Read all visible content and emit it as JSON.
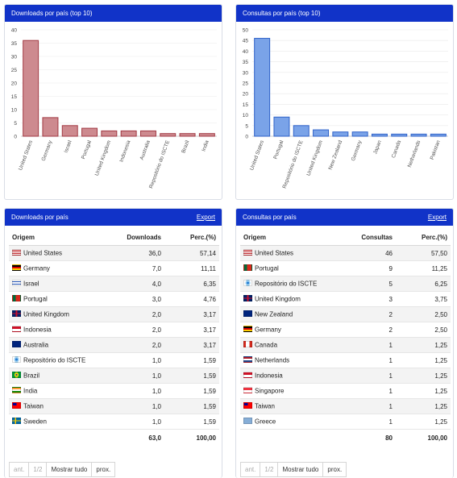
{
  "downloads_chart": {
    "title": "Downloads por país (top 10)",
    "chart_data": {
      "type": "bar",
      "categories": [
        "United States",
        "Germany",
        "Israel",
        "Portugal",
        "United Kingdom",
        "Indonesia",
        "Australia",
        "Repositório do ISCTE",
        "Brazil",
        "India"
      ],
      "values": [
        36,
        7,
        4,
        3,
        2,
        2,
        2,
        1,
        1,
        1
      ],
      "ylim": [
        0,
        40
      ],
      "yticks": [
        0,
        5,
        10,
        15,
        20,
        25,
        30,
        35,
        40
      ],
      "grid": true,
      "color": "#cd8a8f",
      "stroke": "#a23a44"
    }
  },
  "consultas_chart": {
    "title": "Consultas por país (top 10)",
    "chart_data": {
      "type": "bar",
      "categories": [
        "United States",
        "Portugal",
        "Repositório do ISCTE",
        "United Kingdom",
        "New Zealand",
        "Germany",
        "Japan",
        "Canada",
        "Netherlands",
        "Pakistan"
      ],
      "values": [
        46,
        9,
        5,
        3,
        2,
        2,
        1,
        1,
        1,
        1
      ],
      "ylim": [
        0,
        50
      ],
      "yticks": [
        0,
        5,
        10,
        15,
        20,
        25,
        30,
        35,
        40,
        45,
        50
      ],
      "grid": true,
      "color": "#7aa3e8",
      "stroke": "#2f62c8"
    }
  },
  "downloads_table": {
    "title": "Downloads por país",
    "export_label": "Export",
    "headers": [
      "Origem",
      "Downloads",
      "Perc.(%)"
    ],
    "rows": [
      {
        "flag": "us",
        "origem": "United States",
        "value": "36,0",
        "perc": "57,14"
      },
      {
        "flag": "de",
        "origem": "Germany",
        "value": "7,0",
        "perc": "11,11"
      },
      {
        "flag": "il",
        "origem": "Israel",
        "value": "4,0",
        "perc": "6,35"
      },
      {
        "flag": "pt",
        "origem": "Portugal",
        "value": "3,0",
        "perc": "4,76"
      },
      {
        "flag": "gb",
        "origem": "United Kingdom",
        "value": "2,0",
        "perc": "3,17"
      },
      {
        "flag": "id",
        "origem": "Indonesia",
        "value": "2,0",
        "perc": "3,17"
      },
      {
        "flag": "au",
        "origem": "Australia",
        "value": "2,0",
        "perc": "3,17"
      },
      {
        "flag": "iscte",
        "origem": "Repositório do ISCTE",
        "value": "1,0",
        "perc": "1,59"
      },
      {
        "flag": "br",
        "origem": "Brazil",
        "value": "1,0",
        "perc": "1,59"
      },
      {
        "flag": "in",
        "origem": "India",
        "value": "1,0",
        "perc": "1,59"
      },
      {
        "flag": "tw",
        "origem": "Taiwan",
        "value": "1,0",
        "perc": "1,59"
      },
      {
        "flag": "se",
        "origem": "Sweden",
        "value": "1,0",
        "perc": "1,59"
      }
    ],
    "total": {
      "value": "63,0",
      "perc": "100,00"
    },
    "pager": {
      "prev": "ant.",
      "page": "1/2",
      "all": "Mostrar tudo",
      "next": "prox."
    }
  },
  "consultas_table": {
    "title": "Consultas por país",
    "export_label": "Export",
    "headers": [
      "Origem",
      "Consultas",
      "Perc.(%)"
    ],
    "rows": [
      {
        "flag": "us",
        "origem": "United States",
        "value": "46",
        "perc": "57,50"
      },
      {
        "flag": "pt",
        "origem": "Portugal",
        "value": "9",
        "perc": "11,25"
      },
      {
        "flag": "iscte",
        "origem": "Repositório do ISCTE",
        "value": "5",
        "perc": "6,25"
      },
      {
        "flag": "gb",
        "origem": "United Kingdom",
        "value": "3",
        "perc": "3,75"
      },
      {
        "flag": "nz",
        "origem": "New Zealand",
        "value": "2",
        "perc": "2,50"
      },
      {
        "flag": "de",
        "origem": "Germany",
        "value": "2",
        "perc": "2,50"
      },
      {
        "flag": "ca",
        "origem": "Canada",
        "value": "1",
        "perc": "1,25"
      },
      {
        "flag": "nl",
        "origem": "Netherlands",
        "value": "1",
        "perc": "1,25"
      },
      {
        "flag": "id",
        "origem": "Indonesia",
        "value": "1",
        "perc": "1,25"
      },
      {
        "flag": "sg",
        "origem": "Singapore",
        "value": "1",
        "perc": "1,25"
      },
      {
        "flag": "tw",
        "origem": "Taiwan",
        "value": "1",
        "perc": "1,25"
      },
      {
        "flag": "gr",
        "origem": "Greece",
        "value": "1",
        "perc": "1,25"
      }
    ],
    "total": {
      "value": "80",
      "perc": "100,00"
    },
    "pager": {
      "prev": "ant.",
      "page": "1/2",
      "all": "Mostrar tudo",
      "next": "prox."
    }
  }
}
